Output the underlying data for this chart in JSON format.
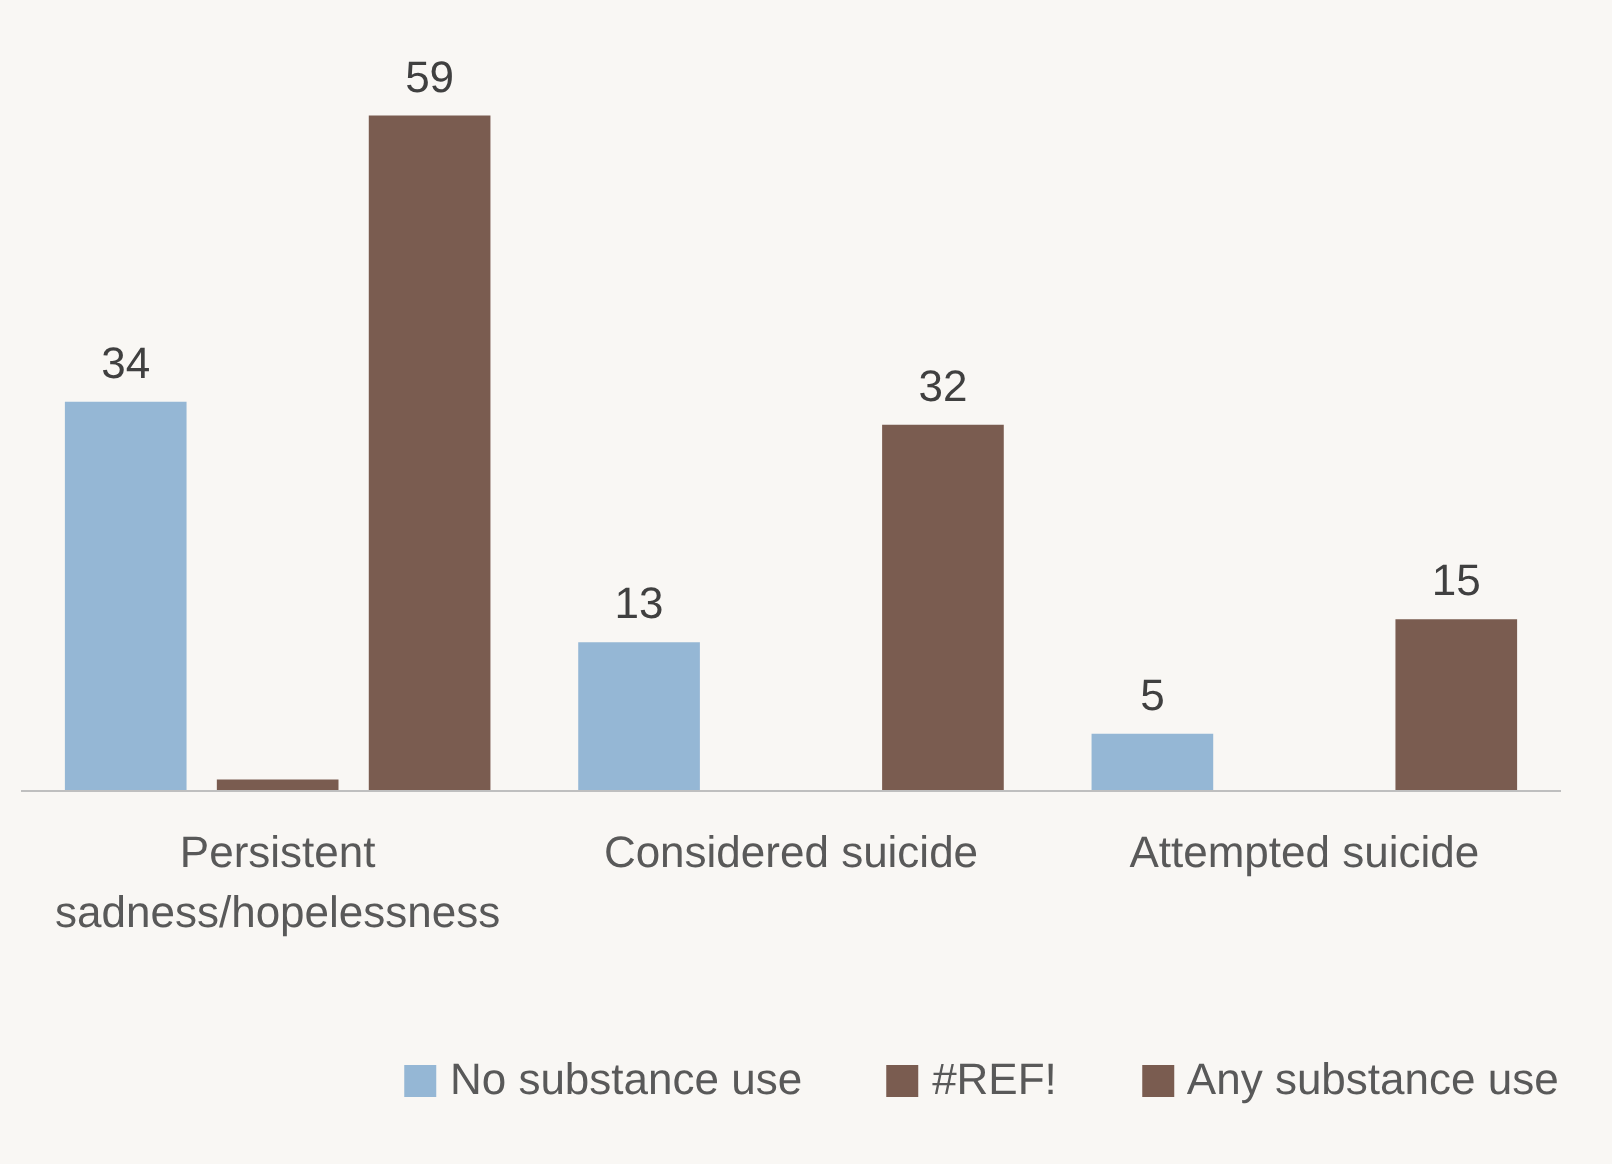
{
  "chart_data": {
    "type": "bar",
    "categories": [
      "Persistent sadness/hopelessness",
      "Considered suicide",
      "Attempted suicide"
    ],
    "series": [
      {
        "name": "No substance use",
        "color": "#95b7d5",
        "values": [
          34,
          13,
          5
        ],
        "value_labels": [
          "34",
          "13",
          "5"
        ]
      },
      {
        "name": "#REF!",
        "color": "#7a5c50",
        "values": [
          1,
          null,
          null
        ],
        "value_labels": [
          null,
          null,
          null
        ]
      },
      {
        "name": "Any substance use",
        "color": "#7a5c50",
        "values": [
          59,
          32,
          15
        ],
        "value_labels": [
          "59",
          "32",
          "15"
        ]
      }
    ],
    "legend": "bottom"
  }
}
